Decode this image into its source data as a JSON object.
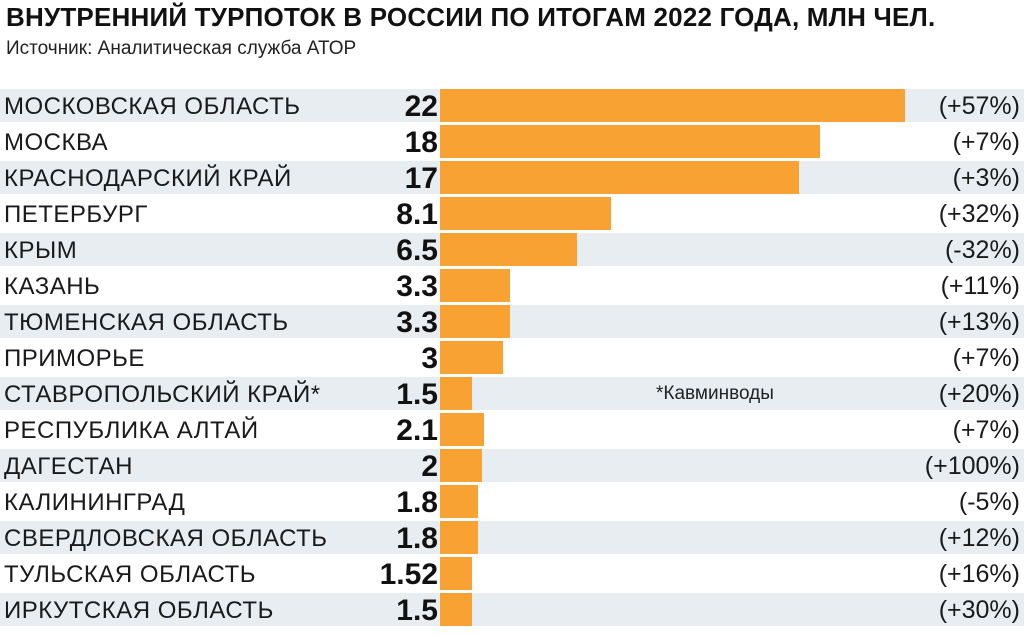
{
  "title": "ВНУТРЕННИЙ ТУРПОТОК В РОССИИ ПО ИТОГАМ 2022 ГОДА, МЛН ЧЕЛ.",
  "subtitle": "Источник: Аналитическая служба АТОР",
  "colors": {
    "bar": "#f7a233",
    "stripe": "#e7edf1"
  },
  "chart_data": {
    "type": "bar",
    "orientation": "horizontal",
    "title": "ВНУТРЕННИЙ ТУРПОТОК В РОССИИ ПО ИТОГАМ 2022 ГОДА, МЛН ЧЕЛ.",
    "subtitle": "Источник: Аналитическая служба АТОР",
    "xlim": [
      0,
      22
    ],
    "grid": false,
    "rows": [
      {
        "category": "МОСКОВСКАЯ ОБЛАСТЬ",
        "value_label": "22",
        "value": 22,
        "change": "(+57%)",
        "note": ""
      },
      {
        "category": "МОСКВА",
        "value_label": "18",
        "value": 18,
        "change": "(+7%)",
        "note": ""
      },
      {
        "category": "КРАСНОДАРСКИЙ КРАЙ",
        "value_label": "17",
        "value": 17,
        "change": "(+3%)",
        "note": ""
      },
      {
        "category": "ПЕТЕРБУРГ",
        "value_label": "8.1",
        "value": 8.1,
        "change": "(+32%)",
        "note": ""
      },
      {
        "category": "КРЫМ",
        "value_label": "6.5",
        "value": 6.5,
        "change": "(-32%)",
        "note": ""
      },
      {
        "category": "КАЗАНЬ",
        "value_label": "3.3",
        "value": 3.3,
        "change": "(+11%)",
        "note": ""
      },
      {
        "category": "ТЮМЕНСКАЯ ОБЛАСТЬ",
        "value_label": "3.3",
        "value": 3.3,
        "change": "(+13%)",
        "note": ""
      },
      {
        "category": "ПРИМОРЬЕ",
        "value_label": "3",
        "value": 3,
        "change": "(+7%)",
        "note": ""
      },
      {
        "category": "СТАВРОПОЛЬСКИЙ КРАЙ*",
        "value_label": "1.5",
        "value": 1.5,
        "change": "(+20%)",
        "note": "*Кавминводы"
      },
      {
        "category": "РЕСПУБЛИКА АЛТАЙ",
        "value_label": "2.1",
        "value": 2.1,
        "change": "(+7%)",
        "note": ""
      },
      {
        "category": "ДАГЕСТАН",
        "value_label": "2",
        "value": 2,
        "change": "(+100%)",
        "note": ""
      },
      {
        "category": "КАЛИНИНГРАД",
        "value_label": "1.8",
        "value": 1.8,
        "change": "(-5%)",
        "note": ""
      },
      {
        "category": "СВЕРДЛОВСКАЯ ОБЛАСТЬ",
        "value_label": "1.8",
        "value": 1.8,
        "change": "(+12%)",
        "note": ""
      },
      {
        "category": "ТУЛЬСКАЯ ОБЛАСТЬ",
        "value_label": "1.52",
        "value": 1.52,
        "change": "(+16%)",
        "note": ""
      },
      {
        "category": "ИРКУТСКАЯ ОБЛАСТЬ",
        "value_label": "1.5",
        "value": 1.5,
        "change": "(+30%)",
        "note": ""
      }
    ]
  }
}
